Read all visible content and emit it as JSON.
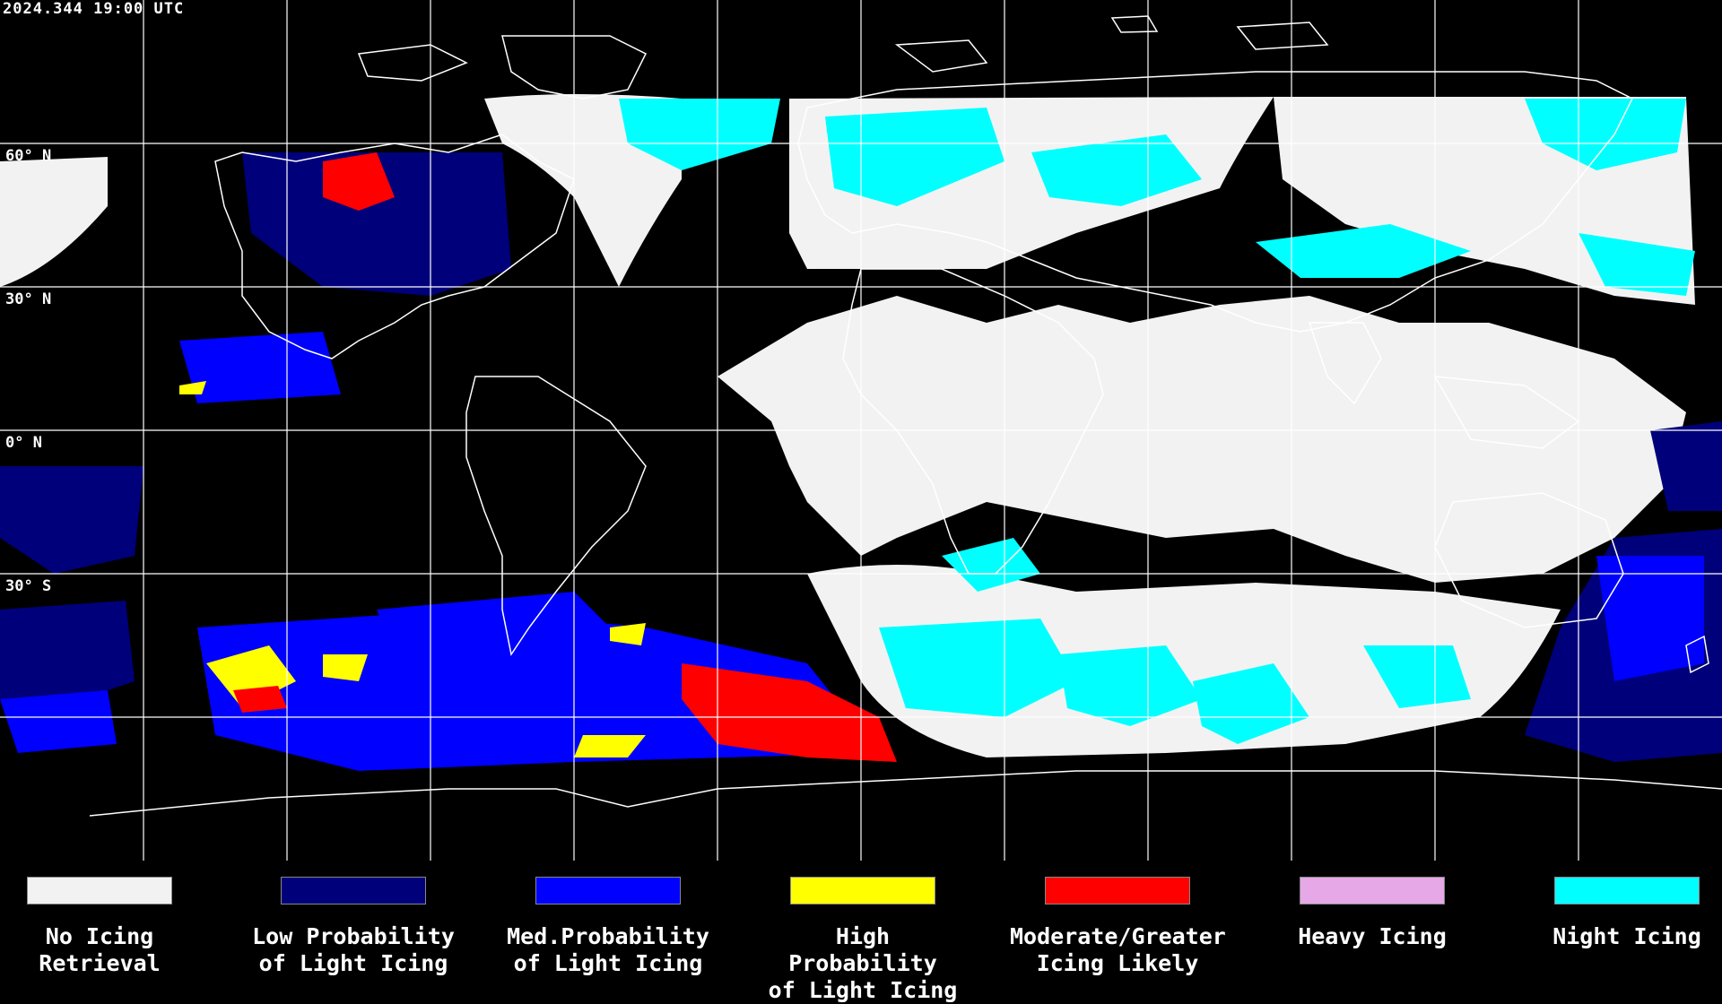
{
  "header": {
    "timestamp": "2024.344 19:00 UTC"
  },
  "latitude_labels": [
    "60° N",
    "30° N",
    "0° N",
    "30° S"
  ],
  "legend": [
    {
      "line1": "No Icing",
      "line2": "Retrieval",
      "color": "#f2f2f2"
    },
    {
      "line1": "Low Probability",
      "line2": "of Light Icing",
      "color": "#00007a"
    },
    {
      "line1": "Med.Probability",
      "line2": "of Light Icing",
      "color": "#0000ff"
    },
    {
      "line1": "High Probability",
      "line2": "of Light Icing",
      "color": "#ffff00"
    },
    {
      "line1": "Moderate/Greater",
      "line2": "Icing Likely",
      "color": "#ff0000"
    },
    {
      "line1": "Heavy Icing",
      "line2": "",
      "color": "#e6a8e6"
    },
    {
      "line1": "Night Icing",
      "line2": "",
      "color": "#00ffff"
    }
  ],
  "colors": {
    "background": "#000000",
    "grid": "#ffffff",
    "coastline": "#ffffff",
    "no_icing": "#f2f2f2",
    "night_icing": "#00ffff",
    "low": "#00007a",
    "med": "#0000ff",
    "high": "#ffff00",
    "moderate": "#ff0000"
  }
}
